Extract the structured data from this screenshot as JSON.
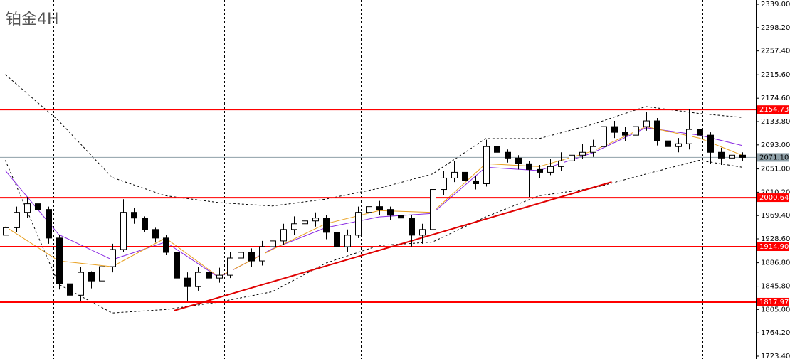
{
  "chart_data": {
    "type": "candlestick",
    "title": "铂金4H",
    "xlim": [
      -0.5,
      70.3
    ],
    "ylim": [
      1718.4,
      2346.5
    ],
    "yticks": [
      {
        "value": 2339.0,
        "label": "2339.00"
      },
      {
        "value": 2298.2,
        "label": "2298.20"
      },
      {
        "value": 2257.4,
        "label": "2257.40"
      },
      {
        "value": 2215.6,
        "label": "2215.60"
      },
      {
        "value": 2174.6,
        "label": "2174.60"
      },
      {
        "value": 2133.8,
        "label": "2133.80"
      },
      {
        "value": 2093.0,
        "label": "2093.00"
      },
      {
        "value": 2051.0,
        "label": "2051.00"
      },
      {
        "value": 2010.2,
        "label": "2010.20"
      },
      {
        "value": 1969.4,
        "label": "1969.40"
      },
      {
        "value": 1928.6,
        "label": "1928.60"
      },
      {
        "value": 1886.8,
        "label": "1886.80"
      },
      {
        "value": 1845.8,
        "label": "1845.80"
      },
      {
        "value": 1805.0,
        "label": "1805.00"
      },
      {
        "value": 1764.2,
        "label": "1764.20"
      },
      {
        "value": 1723.4,
        "label": "1723.40"
      }
    ],
    "xgrid": [
      4.5,
      20.5,
      33.3,
      49.3,
      65.3
    ],
    "open": [
      1935,
      1948,
      1975,
      1990,
      1980,
      1930,
      1850,
      1830,
      1870,
      1855,
      1880,
      1910,
      1975,
      1965,
      1945,
      1930,
      1905,
      1860,
      1845,
      1870,
      1860,
      1865,
      1895,
      1905,
      1890,
      1915,
      1925,
      1945,
      1955,
      1960,
      1965,
      1940,
      1915,
      1935,
      1975,
      1985,
      1980,
      1970,
      1965,
      1935,
      1945,
      2015,
      2035,
      2045,
      2030,
      2025,
      2090,
      2080,
      2070,
      2060,
      2050,
      2045,
      2055,
      2065,
      2075,
      2080,
      2090,
      2125,
      2115,
      2110,
      2125,
      2135,
      2100,
      2090,
      2095,
      2120,
      2110,
      2080,
      2070,
      2075
    ],
    "close": [
      1948,
      1975,
      1990,
      1980,
      1930,
      1850,
      1830,
      1870,
      1855,
      1880,
      1910,
      1975,
      1965,
      1945,
      1930,
      1905,
      1860,
      1845,
      1870,
      1860,
      1865,
      1895,
      1905,
      1890,
      1915,
      1925,
      1945,
      1955,
      1960,
      1965,
      1940,
      1915,
      1935,
      1975,
      1985,
      1980,
      1970,
      1965,
      1935,
      1945,
      2015,
      2035,
      2045,
      2030,
      2025,
      2090,
      2080,
      2070,
      2060,
      2050,
      2045,
      2055,
      2065,
      2075,
      2080,
      2090,
      2125,
      2115,
      2110,
      2125,
      2135,
      2100,
      2090,
      2095,
      2120,
      2110,
      2080,
      2070,
      2075,
      2071.1
    ],
    "high": [
      1962,
      1985,
      2002,
      1998,
      1985,
      1935,
      1852,
      1880,
      1872,
      1890,
      1920,
      1998,
      1982,
      1968,
      1948,
      1935,
      1912,
      1870,
      1880,
      1875,
      1878,
      1905,
      1915,
      1912,
      1925,
      1935,
      1955,
      1968,
      1972,
      1975,
      1970,
      1945,
      1945,
      1985,
      2008,
      1995,
      1985,
      1975,
      1970,
      1955,
      2025,
      2048,
      2065,
      2052,
      2038,
      2102,
      2095,
      2085,
      2075,
      2065,
      2058,
      2068,
      2080,
      2090,
      2095,
      2102,
      2140,
      2135,
      2125,
      2135,
      2150,
      2140,
      2108,
      2105,
      2155,
      2128,
      2115,
      2088,
      2085,
      2080
    ],
    "low": [
      1905,
      1940,
      1965,
      1972,
      1920,
      1840,
      1740,
      1820,
      1842,
      1850,
      1870,
      1905,
      1955,
      1940,
      1922,
      1900,
      1850,
      1820,
      1838,
      1850,
      1852,
      1860,
      1888,
      1880,
      1882,
      1910,
      1918,
      1935,
      1945,
      1950,
      1928,
      1898,
      1905,
      1930,
      1965,
      1970,
      1962,
      1955,
      1915,
      1920,
      1940,
      2005,
      2028,
      2025,
      2015,
      2020,
      2068,
      2062,
      2050,
      2002,
      2035,
      2040,
      2048,
      2055,
      2068,
      2072,
      2082,
      2105,
      2100,
      2105,
      2118,
      2092,
      2082,
      2080,
      2085,
      2098,
      2060,
      2058,
      2062,
      2065
    ],
    "overlay_x": [
      0,
      5,
      10,
      15,
      20,
      25,
      30,
      35,
      40,
      45,
      50,
      55,
      60,
      65,
      69
    ],
    "overlays": [
      {
        "color": "#000000",
        "dash": true,
        "values": [
          2216,
          2135,
          2036,
          2004,
          1992,
          1986,
          1998,
          2017,
          2042,
          2104,
          2104,
          2129,
          2160,
          2148,
          2141
        ]
      },
      {
        "color": "#000000",
        "dash": true,
        "values": [
          2066,
          1849,
          1799,
          1805,
          1818,
          1836,
          1886,
          1917,
          1923,
          1967,
          2004,
          2017,
          2042,
          2066,
          2054
        ]
      },
      {
        "color": "#8a2be2",
        "dash": false,
        "values": [
          2048,
          1936,
          1892,
          1923,
          1861,
          1911,
          1948,
          1967,
          1973,
          2054,
          2048,
          2079,
          2123,
          2110,
          2092
        ]
      },
      {
        "color": "#e8a020",
        "dash": false,
        "values": [
          1950,
          1890,
          1880,
          1930,
          1862,
          1910,
          1955,
          1978,
          1975,
          2060,
          2055,
          2082,
          2125,
          2105,
          2075
        ]
      }
    ],
    "levels": [
      {
        "value": 2154.73,
        "color": "#ff0000"
      },
      {
        "value": 2071.1,
        "label": "2071.10",
        "color": "#8fa0a8"
      },
      {
        "value": 2000.64,
        "color": "#ff0000"
      },
      {
        "value": 1914.9,
        "label": "1914.90",
        "color": "#ff0000"
      },
      {
        "value": 1817.97,
        "color": "#ff0000"
      }
    ],
    "trendline": {
      "x": [
        15.8,
        56.8
      ],
      "y": [
        1803.0,
        2028.1
      ],
      "color": "#e00000"
    }
  }
}
